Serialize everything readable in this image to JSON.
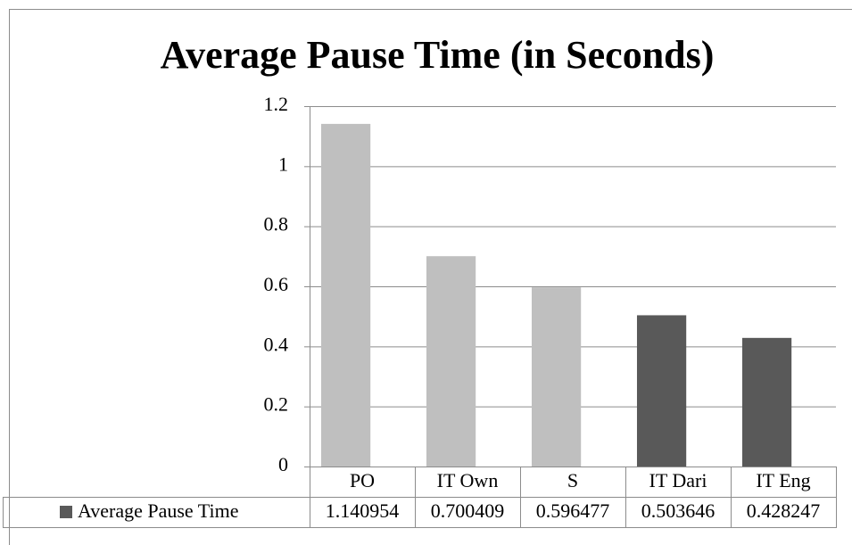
{
  "chart_data": {
    "type": "bar",
    "title": "Average Pause Time (in Seconds)",
    "categories": [
      "PO",
      "IT Own",
      "S",
      "IT Dari",
      "IT Eng"
    ],
    "series": [
      {
        "name": "Average Pause Time",
        "color": "#595959",
        "values": [
          1.140954,
          0.700409,
          0.596477,
          0.503646,
          0.428247
        ],
        "bar_colors": [
          "#bfbfbf",
          "#bfbfbf",
          "#bfbfbf",
          "#595959",
          "#595959"
        ]
      }
    ],
    "ylim": [
      0,
      1.2
    ],
    "yticks": [
      0,
      0.2,
      0.4,
      0.6,
      0.8,
      1,
      1.2
    ],
    "grid": true,
    "data_table": true
  }
}
